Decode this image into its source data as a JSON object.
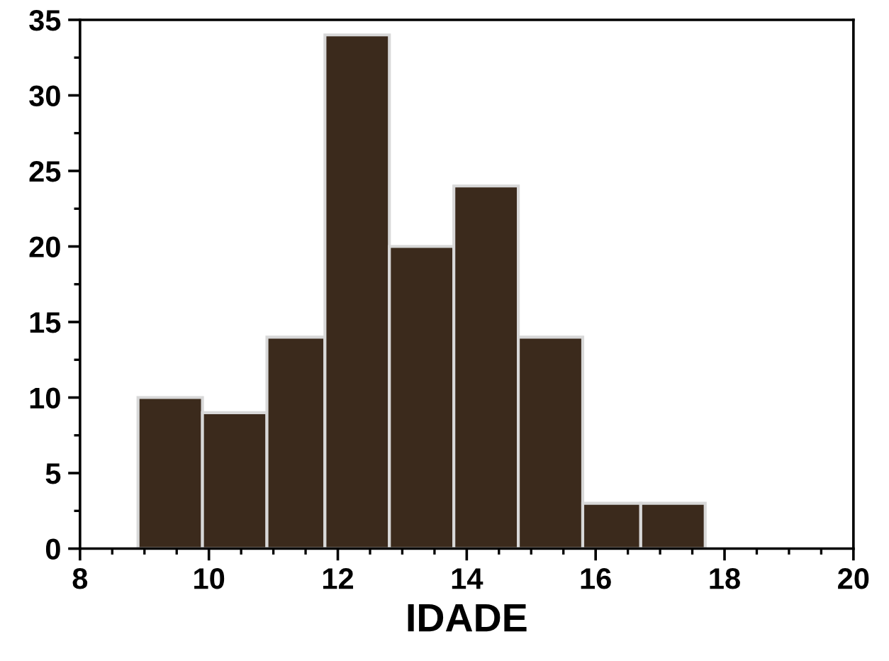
{
  "chart_data": {
    "type": "histogram",
    "xlabel": "IDADE",
    "bins": [
      8.9,
      9.9,
      10.9,
      11.8,
      12.8,
      13.8,
      14.8,
      15.8,
      16.7,
      17.7
    ],
    "values": [
      10,
      9,
      14,
      34,
      20,
      24,
      14,
      3,
      3
    ],
    "color": "#3b2a1c",
    "xlim": [
      8,
      20
    ],
    "xticks": [
      8,
      10,
      12,
      14,
      16,
      18,
      20
    ],
    "ylim": [
      0,
      35
    ],
    "yticks": [
      0,
      5,
      10,
      15,
      20,
      25,
      30,
      35
    ],
    "grid": false
  }
}
